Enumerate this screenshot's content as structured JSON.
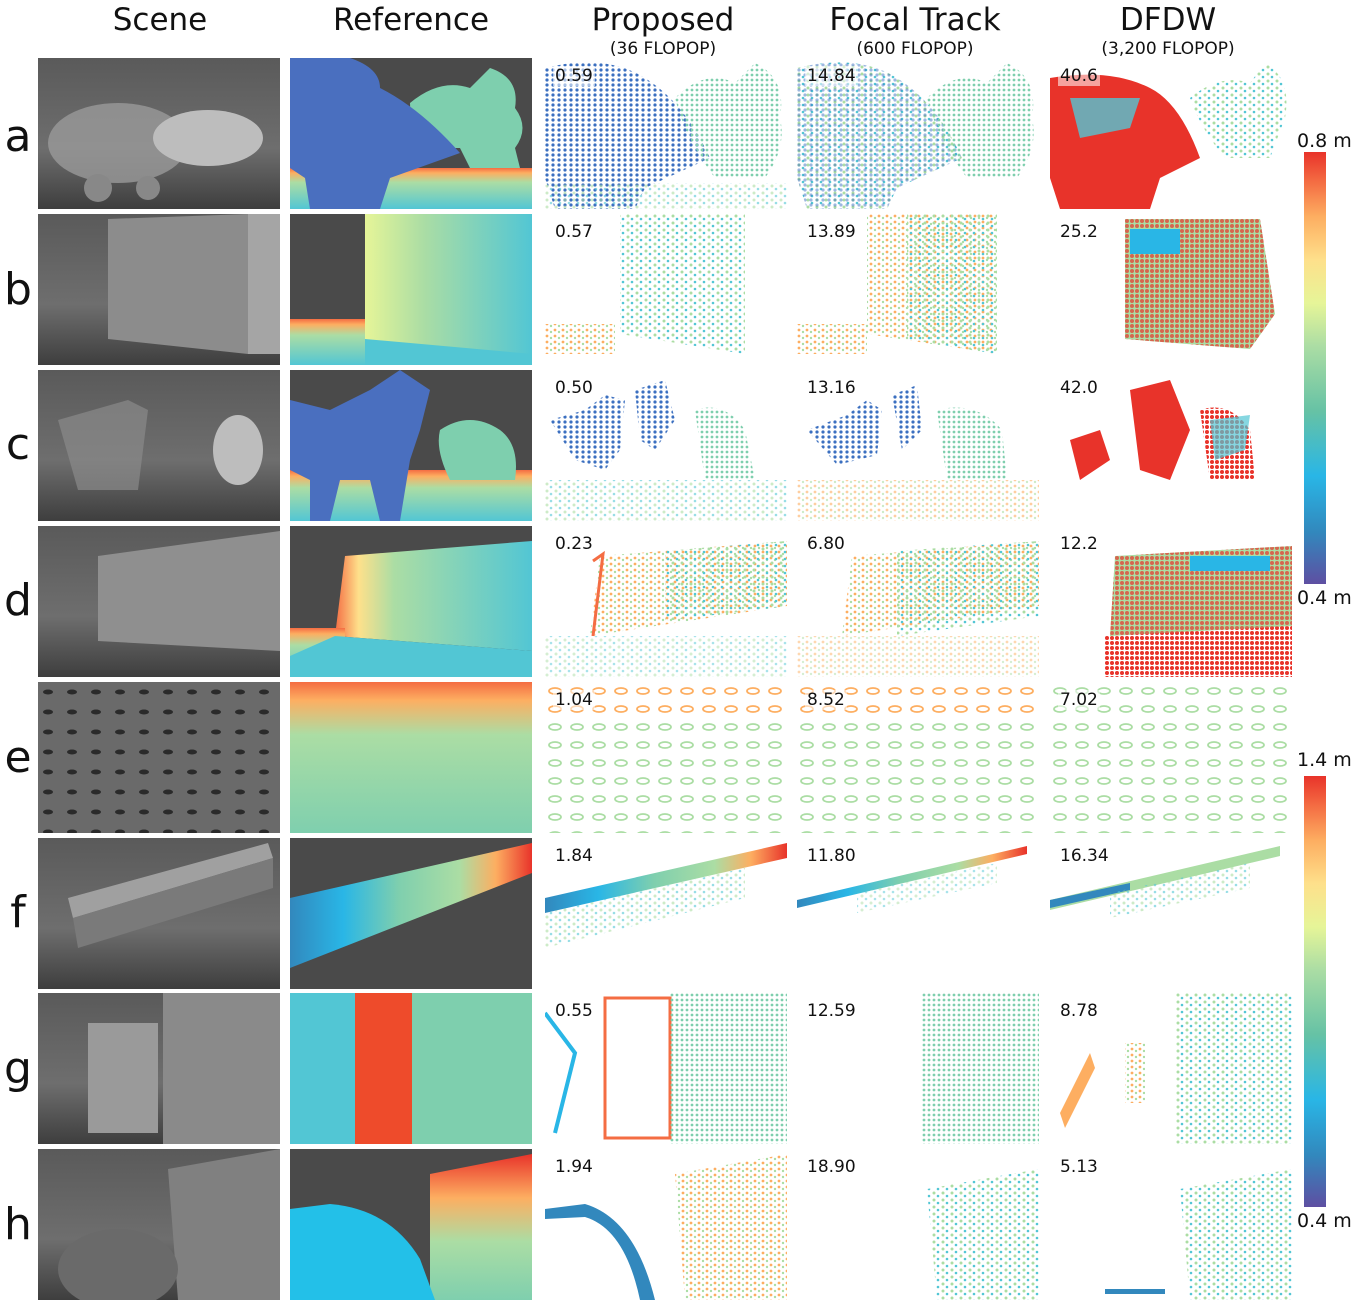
{
  "columns": [
    {
      "title": "Scene",
      "subtitle": ""
    },
    {
      "title": "Reference",
      "subtitle": ""
    },
    {
      "title": "Proposed",
      "subtitle": "(36 FLOPOP)"
    },
    {
      "title": "Focal Track",
      "subtitle": "(600 FLOPOP)"
    },
    {
      "title": "DFDW",
      "subtitle": "(3,200 FLOPOP)"
    }
  ],
  "rows": [
    {
      "label": "a",
      "errors": [
        "0.59",
        "14.84",
        "40.6"
      ]
    },
    {
      "label": "b",
      "errors": [
        "0.57",
        "13.89",
        "25.2"
      ]
    },
    {
      "label": "c",
      "errors": [
        "0.50",
        "13.16",
        "42.0"
      ]
    },
    {
      "label": "d",
      "errors": [
        "0.23",
        "6.80",
        "12.2"
      ]
    },
    {
      "label": "e",
      "errors": [
        "1.04",
        "8.52",
        "7.02"
      ]
    },
    {
      "label": "f",
      "errors": [
        "1.84",
        "11.80",
        "16.34"
      ]
    },
    {
      "label": "g",
      "errors": [
        "0.55",
        "12.59",
        "8.78"
      ]
    },
    {
      "label": "h",
      "errors": [
        "1.94",
        "18.90",
        "5.13"
      ]
    }
  ],
  "colorbars": [
    {
      "max_label": "0.8 m",
      "min_label": "0.4 m",
      "applies_to_rows": "a-d"
    },
    {
      "max_label": "1.4 m",
      "min_label": "0.4 m",
      "applies_to_rows": "e-h"
    }
  ],
  "colormap": [
    "#5e4fa2",
    "#3288bd",
    "#29b6e6",
    "#66c2a5",
    "#7fcfae",
    "#abdda4",
    "#e6f598",
    "#fee08b",
    "#fdae61",
    "#f46d43",
    "#e8332a"
  ],
  "reference_region_colors": {
    "blue": "#4a6fbf",
    "teal": "#7ecfae",
    "cyan": "#52c6d4",
    "red": "#ee4b2b",
    "sky": "#23c0e8",
    "gray": "#4a4a4a"
  }
}
